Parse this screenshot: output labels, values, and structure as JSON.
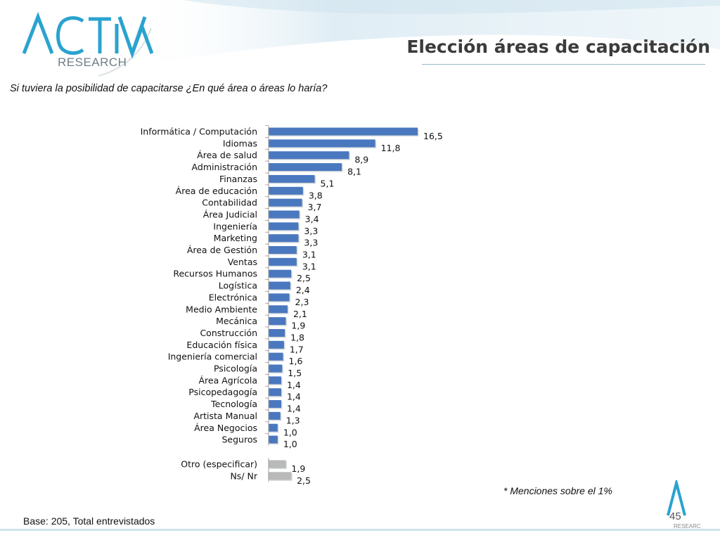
{
  "slide": {
    "title": "Elección áreas de capacitación",
    "question": "Si tuviera la posibilidad de capacitarse ¿En qué área o áreas lo haría?",
    "footnote": "* Menciones sobre el 1%",
    "base": "Base: 205, Total entrevistados",
    "page_number": "45"
  },
  "logo": {
    "word": "ACTIVA",
    "letters": [
      "A",
      "C",
      "T",
      "I",
      "V",
      "A"
    ],
    "sub": "RESEARCH",
    "color": "#2aa3cf"
  },
  "colors": {
    "primary_bar": "#4a78bf",
    "secondary_bar": "#b9b9b9",
    "title_text": "#3b3b3b"
  },
  "chart_data": {
    "type": "bar",
    "orientation": "horizontal",
    "categories": [
      "Informática / Computación",
      "Idiomas",
      "Área de salud",
      "Administración",
      "Finanzas",
      "Área de educación",
      "Contabilidad",
      "Área Judicial",
      "Ingeniería",
      "Marketing",
      "Área de Gestión",
      "Ventas",
      "Recursos Humanos",
      "Logística",
      "Electrónica",
      "Medio Ambiente",
      "Mecánica",
      "Construcción",
      "Educación física",
      "Ingeniería comercial",
      "Psicología",
      "Área Agrícola",
      "Psicopedagogía",
      "Tecnología",
      "Artista Manual",
      "Área Negocios",
      "Seguros"
    ],
    "values": [
      16.5,
      11.8,
      8.9,
      8.1,
      5.1,
      3.8,
      3.7,
      3.4,
      3.3,
      3.3,
      3.1,
      3.1,
      2.5,
      2.4,
      2.3,
      2.1,
      1.9,
      1.8,
      1.7,
      1.6,
      1.5,
      1.4,
      1.4,
      1.4,
      1.3,
      1.0,
      1.0
    ],
    "value_labels": [
      "16,5",
      "11,8",
      "8,9",
      "8,1",
      "5,1",
      "3,8",
      "3,7",
      "3,4",
      "3,3",
      "3,3",
      "3,1",
      "3,1",
      "2,5",
      "2,4",
      "2,3",
      "2,1",
      "1,9",
      "1,8",
      "1,7",
      "1,6",
      "1,5",
      "1,4",
      "1,4",
      "1,4",
      "1,3",
      "1,0",
      "1,0"
    ],
    "extra_categories": [
      "Otro (especificar)",
      "Ns/ Nr"
    ],
    "extra_values": [
      1.9,
      2.5
    ],
    "extra_value_labels": [
      "1,9",
      "2,5"
    ],
    "xlim": [
      0,
      16.5
    ],
    "grid": false,
    "legend": false
  }
}
